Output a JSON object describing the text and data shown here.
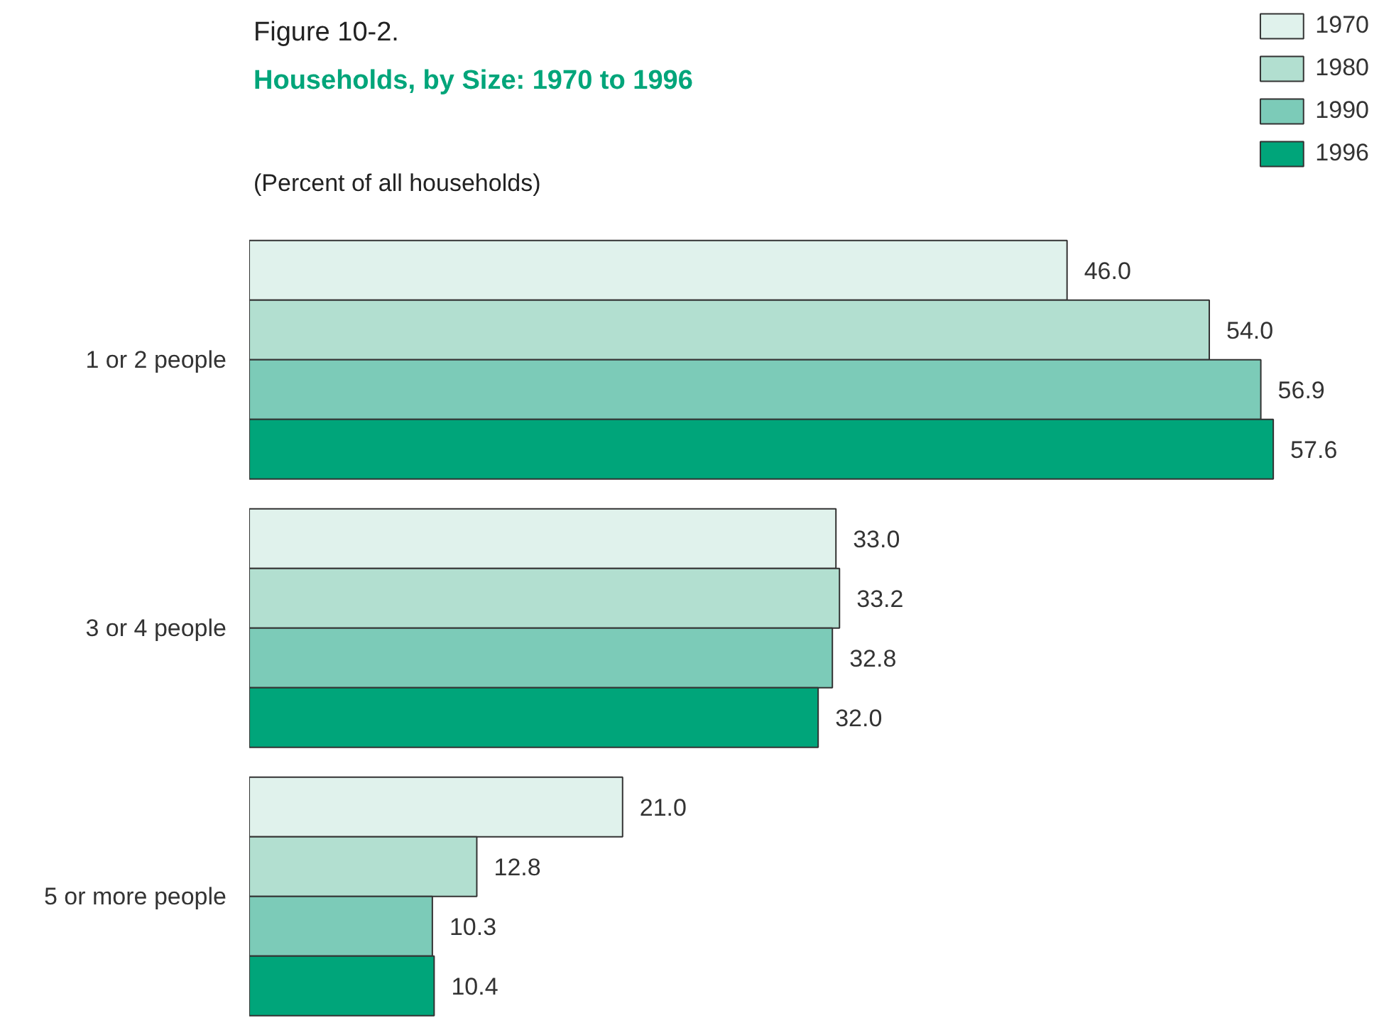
{
  "chart_data": {
    "type": "bar",
    "orientation": "horizontal",
    "title": "Figure 10-2.",
    "subtitle": "Households, by Size:  1970 to 1996",
    "annotations": [
      "(Percent of all households)"
    ],
    "categories": [
      "1 or 2 people",
      "3 or 4 people",
      "5 or more people"
    ],
    "series": [
      {
        "name": "1970",
        "color": "#e0f2ec",
        "values": [
          46.0,
          33.0,
          21.0
        ],
        "value_labels": [
          "46.0",
          "33.0",
          "21.0"
        ]
      },
      {
        "name": "1980",
        "color": "#b2dfd0",
        "values": [
          54.0,
          33.2,
          12.8
        ],
        "value_labels": [
          "54.0",
          "33.2",
          "12.8"
        ]
      },
      {
        "name": "1990",
        "color": "#7ccbb8",
        "values": [
          56.9,
          32.8,
          10.3
        ],
        "value_labels": [
          "56.9",
          "32.8",
          "10.3"
        ]
      },
      {
        "name": "1996",
        "color": "#00a57a",
        "values": [
          57.6,
          32.0,
          10.4
        ],
        "value_labels": [
          "57.6",
          "32.0",
          "10.4"
        ]
      }
    ],
    "legend": "top right",
    "grid": false
  }
}
